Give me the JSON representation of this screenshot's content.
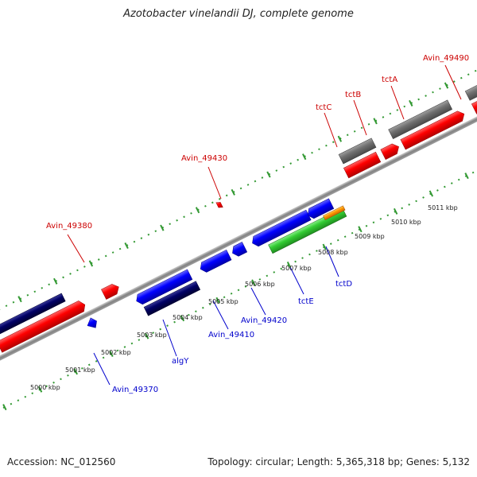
{
  "title": "Azotobacter vinelandii DJ, complete genome",
  "footer": {
    "accession": "Accession: NC_012560",
    "topology": "Topology: circular; Length: 5,365,318 bp; Genes: 5,132"
  },
  "scale_labels": [
    "5000 kbp",
    "5001 kbp",
    "5002 kbp",
    "5003 kbp",
    "5004 kbp",
    "5005 kbp",
    "5006 kbp",
    "5007 kbp",
    "5008 kbp",
    "5009 kbp",
    "5010 kbp",
    "5011 kbp"
  ],
  "gene_labels_top": [
    "Avin_49380",
    "Avin_49430",
    "tctC",
    "tctB",
    "tctA",
    "Avin_49490"
  ],
  "gene_labels_bottom": [
    "Avin_49370",
    "algY",
    "Avin_49410",
    "Avin_49420",
    "tctE",
    "tctD"
  ],
  "colors": {
    "forward_gene": "#ff0000",
    "reverse_gene": "#0000ff",
    "dark_gene": "#000066",
    "gray_gene": "#707070",
    "green_gene": "#33cc33",
    "orange_gene": "#ff9900",
    "tick": "#339933",
    "top_label": "#cc0000",
    "bottom_label": "#0000cc"
  }
}
